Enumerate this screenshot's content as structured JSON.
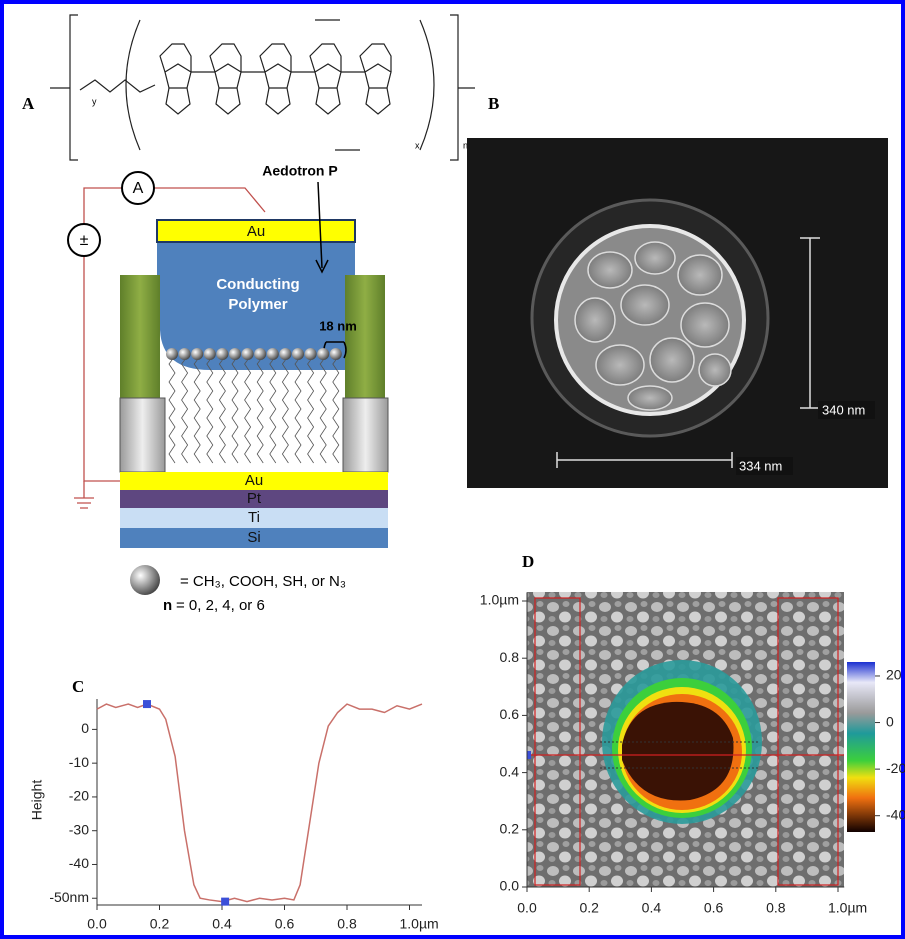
{
  "panel_a": {
    "label": "A",
    "polymer_name": "Aedotron P",
    "top_electrode": "Au",
    "polymer": [
      "Conducting",
      "Polymer"
    ],
    "gap": "18 nm",
    "ammeter": "A",
    "source": "±",
    "layers": [
      "Au",
      "Pt",
      "Ti",
      "Si"
    ],
    "chem_subscripts": [
      "y",
      "x",
      "n"
    ],
    "legend": {
      "sphere": "= CH₃, COOH, SH, or N₃",
      "n_var": "n",
      "n_values": "= 0, 2, 4, or 6"
    }
  },
  "panel_b": {
    "label": "B",
    "scale_vertical": "340 nm",
    "scale_horizontal": "334 nm"
  },
  "chart_data": {
    "type": "line",
    "label": "C",
    "ylabel": "Height",
    "x": [
      0,
      0.03,
      0.06,
      0.1,
      0.13,
      0.16,
      0.2,
      0.22,
      0.25,
      0.28,
      0.31,
      0.33,
      0.36,
      0.4,
      0.44,
      0.48,
      0.52,
      0.56,
      0.6,
      0.63,
      0.65,
      0.68,
      0.71,
      0.74,
      0.77,
      0.8,
      0.84,
      0.88,
      0.92,
      0.96,
      1.0,
      1.04
    ],
    "values": [
      6,
      7.5,
      6.5,
      7.5,
      6.5,
      7.5,
      6,
      3,
      -8,
      -30,
      -46,
      -50,
      -50.5,
      -51,
      -50,
      -51,
      -50,
      -50.5,
      -50,
      -50.5,
      -46,
      -28,
      -10,
      1,
      5,
      7.5,
      6,
      6,
      5,
      7,
      6,
      7.5
    ],
    "color": "#c9706a",
    "xlim": [
      0,
      1.04
    ],
    "ylim": [
      -52,
      9
    ],
    "xticks": [
      {
        "value": 0,
        "label": "0.0"
      },
      0.2,
      0.4,
      0.6,
      0.8,
      {
        "value": 1,
        "label": "1.0µm"
      }
    ],
    "yticks": [
      0,
      -10,
      -20,
      -30,
      -40,
      {
        "value": -50,
        "label": "-50nm"
      }
    ],
    "markers": {
      "x": [
        0.16,
        0.41
      ],
      "y": [
        7.5,
        -51
      ],
      "color": "#3b4fd8"
    }
  },
  "panel_d": {
    "label": "D",
    "xlim": [
      0,
      1.02
    ],
    "ylim": [
      0,
      1.03
    ],
    "xticks": [
      {
        "value": 0,
        "label": "0.0"
      },
      0.2,
      0.4,
      0.6,
      0.8,
      {
        "value": 1,
        "label": "1.0µm"
      }
    ],
    "yticks": [
      {
        "value": 0,
        "label": "0.0"
      },
      0.2,
      0.4,
      0.6,
      0.8,
      {
        "value": 1,
        "label": "1.0µm"
      }
    ],
    "colorbar": {
      "lim": [
        26,
        -47
      ],
      "ticks": [
        20,
        0,
        -20,
        -40
      ]
    }
  }
}
